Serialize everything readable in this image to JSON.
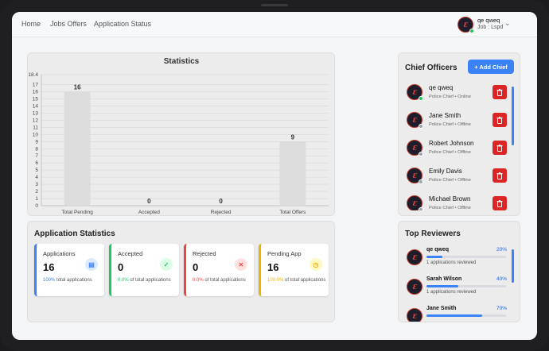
{
  "nav": {
    "links": [
      "Home",
      "Jobs Offers",
      "Application Status"
    ]
  },
  "user": {
    "name": "qe qweq",
    "job": "Job : Lspd",
    "online": true
  },
  "statistics": {
    "title": "Statistics"
  },
  "chart_data": {
    "type": "bar",
    "title": "Statistics",
    "categories": [
      "Total Pending",
      "Accepted",
      "Rejected",
      "Total Offers"
    ],
    "values": [
      16,
      0,
      0,
      9
    ],
    "ylim": [
      0,
      18.4
    ],
    "yticks": [
      "0",
      "1",
      "2",
      "3",
      "4",
      "5",
      "6",
      "7",
      "8",
      "9",
      "10",
      "11",
      "12",
      "13",
      "14",
      "15",
      "16",
      "17",
      "18.4"
    ],
    "grid": true,
    "bar_color": "#dcdcdc"
  },
  "app_stats": {
    "title": "Application Statistics",
    "cards": [
      {
        "label": "Applications",
        "value": "16",
        "pct": "100%",
        "foot": "total applications",
        "color": "#3b82f6",
        "icon": "document-icon"
      },
      {
        "label": "Accepted",
        "value": "0",
        "pct": "0.0%",
        "foot": "of total applications",
        "color": "#22c55e",
        "icon": "check-circle-icon"
      },
      {
        "label": "Rejected",
        "value": "0",
        "pct": "0.0%",
        "foot": "of total applications",
        "color": "#ef4444",
        "icon": "x-circle-icon"
      },
      {
        "label": "Pending App",
        "value": "16",
        "pct": "100.0%",
        "foot": "of total applications",
        "color": "#eab308",
        "icon": "clock-icon"
      }
    ]
  },
  "chiefs": {
    "title": "Chief Officers",
    "add_label": "+ Add Chief",
    "items": [
      {
        "name": "qe qweq",
        "meta": "Police Chief • Online",
        "online": true
      },
      {
        "name": "Jane Smith",
        "meta": "Police Chief • Offline",
        "online": false
      },
      {
        "name": "Robert Johnson",
        "meta": "Police Chief • Offline",
        "online": false
      },
      {
        "name": "Emily Davis",
        "meta": "Police Chief • Offline",
        "online": false
      },
      {
        "name": "Michael Brown",
        "meta": "Police Chief • Offline",
        "online": false
      }
    ]
  },
  "reviewers": {
    "title": "Top Reviewers",
    "items": [
      {
        "name": "qe qweq",
        "pct": "20%",
        "fill": 0.2,
        "sub": "1 applications reviewed"
      },
      {
        "name": "Sarah Wilson",
        "pct": "40%",
        "fill": 0.4,
        "sub": "1 applications reviewed"
      },
      {
        "name": "Jane Smith",
        "pct": "70%",
        "fill": 0.7,
        "sub": ""
      }
    ]
  }
}
